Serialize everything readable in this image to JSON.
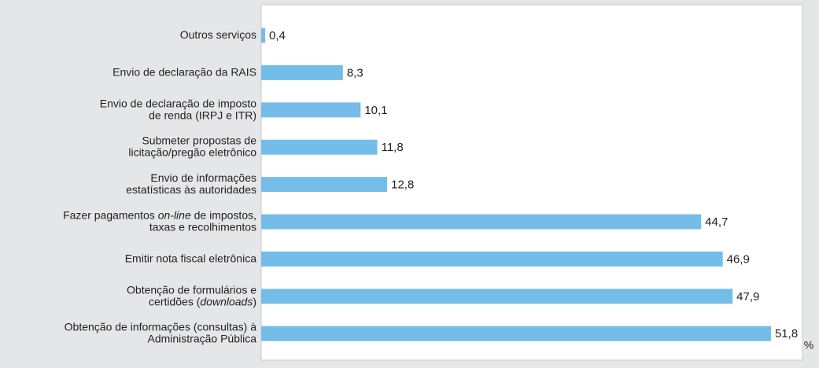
{
  "chart_data": {
    "type": "barh",
    "categories": [
      "Outros serviços",
      "Envio de declaração da RAIS",
      "Envio de declaração de imposto\nde renda (IRPJ e ITR)",
      "Submeter propostas de\nlicitação/pregão eletrônico",
      "Envio de informações\nestatísticas às autoridades",
      "Fazer pagamentos on-line de impostos,\ntaxas e recolhimentos",
      "Emitir nota fiscal eletrônica",
      "Obtenção de formulários e\ncertidões (downloads)",
      "Obtenção de informações (consultas) à\nAdministração Pública"
    ],
    "italic_terms": [
      "on-line",
      "downloads"
    ],
    "values": [
      0.4,
      8.3,
      10.1,
      11.8,
      12.8,
      44.7,
      46.9,
      47.9,
      51.8
    ],
    "value_labels": [
      "0,4",
      "8,3",
      "10,1",
      "11,8",
      "12,8",
      "44,7",
      "46,9",
      "47,9",
      "51,8"
    ],
    "unit": "%",
    "color": "#74bde8",
    "xlim": [
      0,
      55
    ]
  }
}
